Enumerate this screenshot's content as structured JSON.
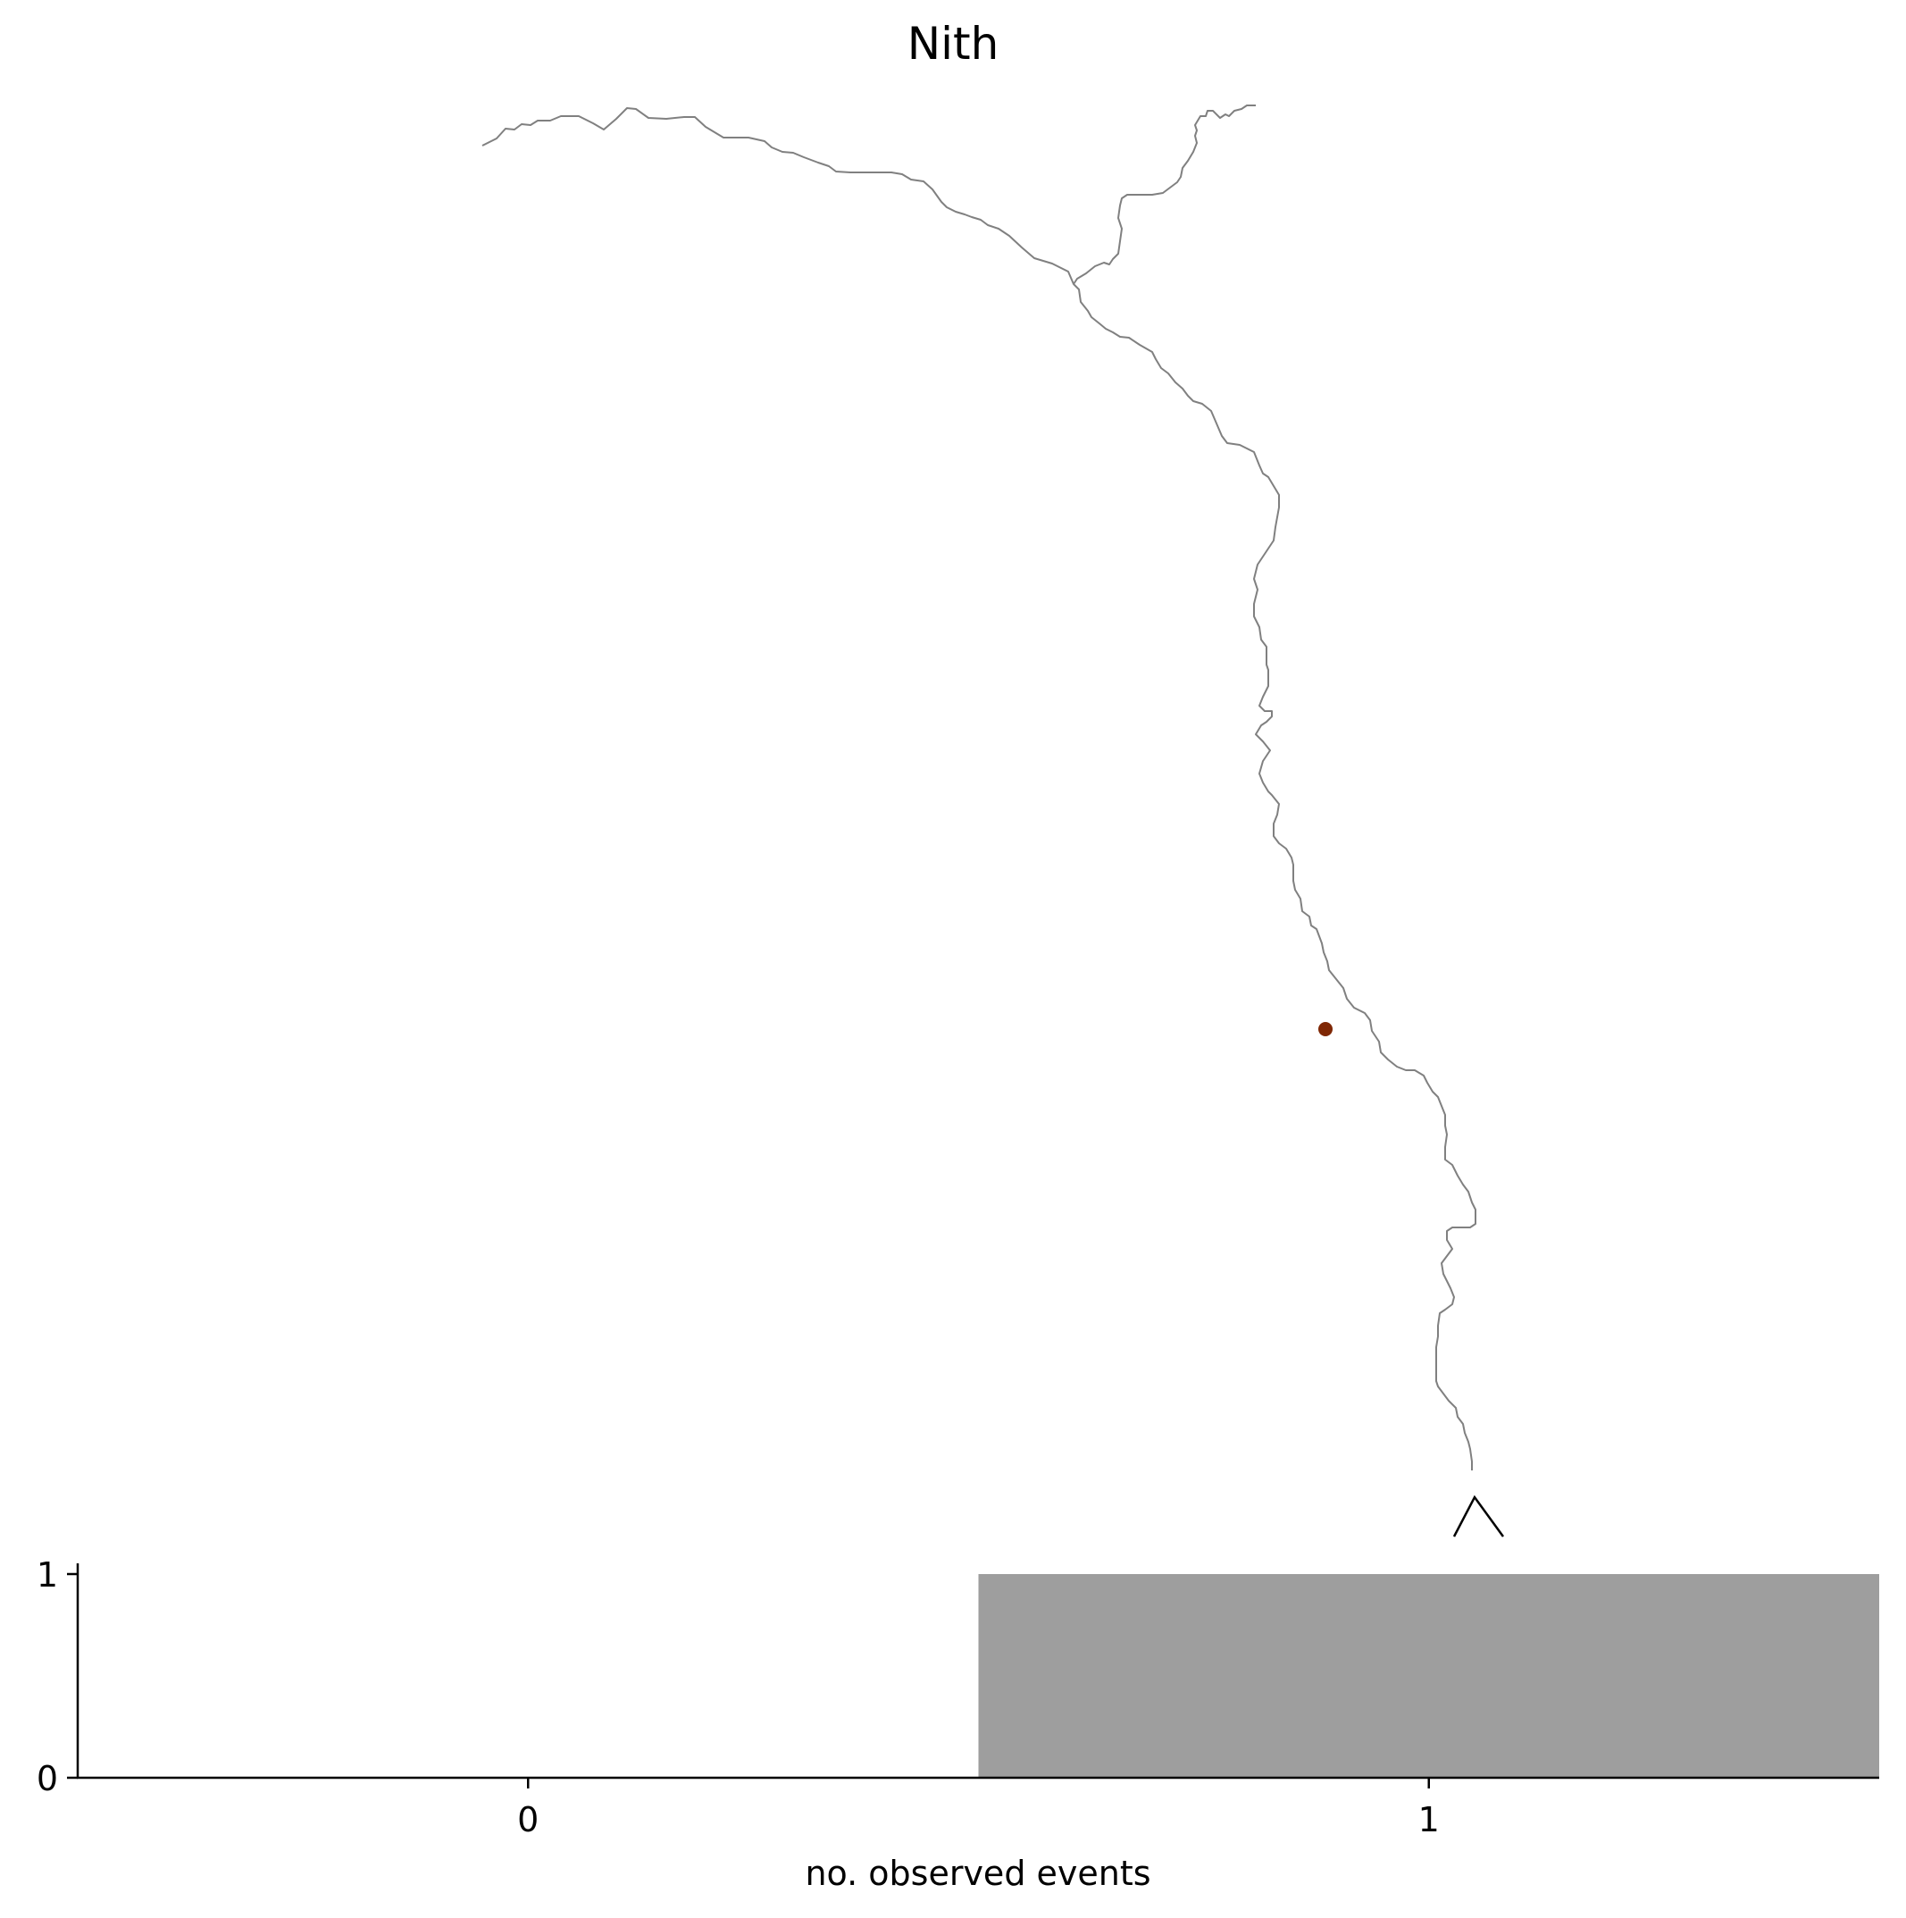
{
  "chart_data": [
    {
      "type": "map",
      "title": "Nith",
      "river_color": "#808080",
      "marker_color": "#7f2704",
      "outlet_marker_color": "#000000"
    },
    {
      "type": "bar",
      "categories": [
        "0",
        "1"
      ],
      "values": [
        0,
        1
      ],
      "x": [
        0,
        1
      ],
      "xlim": [
        -0.5,
        1.5
      ],
      "ylim": [
        0,
        1
      ],
      "yticks": [
        0,
        1
      ],
      "xlabel": "no. observed events",
      "ylabel": "",
      "bar_color": "#9e9e9e",
      "grid": false
    }
  ]
}
